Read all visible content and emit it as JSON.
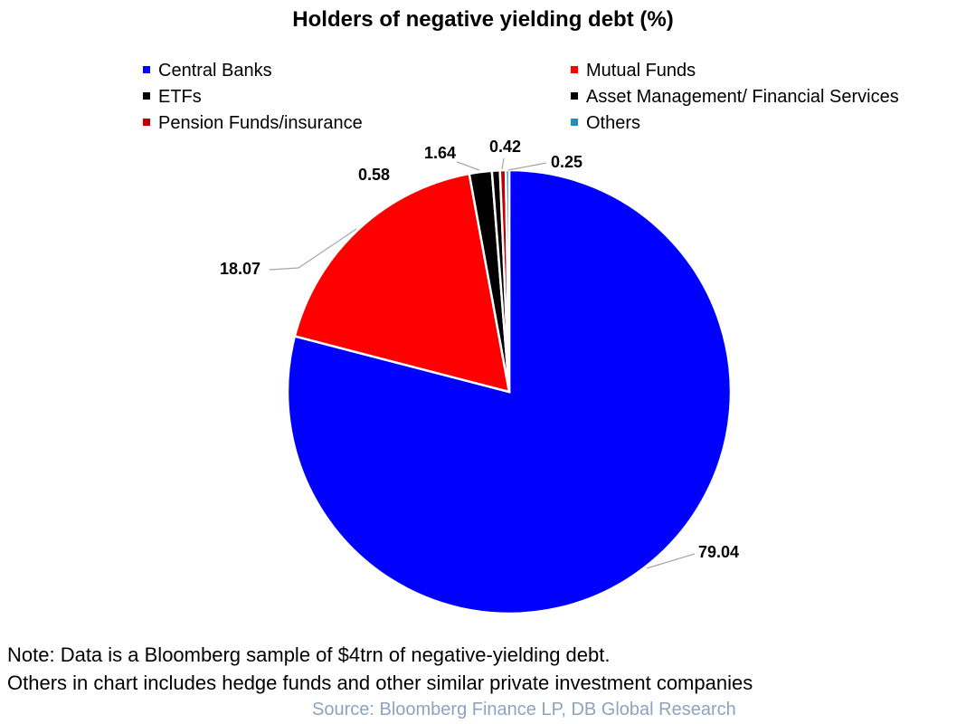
{
  "chart_data": {
    "type": "pie",
    "title": "Holders of negative yielding debt (%)",
    "slices": [
      {
        "label": "Central Banks",
        "value": 79.04,
        "label_text": "79.04",
        "color": "#0000ff"
      },
      {
        "label": "Mutual Funds",
        "value": 18.07,
        "label_text": "18.07",
        "color": "#ff0000"
      },
      {
        "label": "ETFs",
        "value": 1.64,
        "label_text": "1.64",
        "color": "#000000"
      },
      {
        "label": "Asset Management/ Financial Services",
        "value": 0.58,
        "label_text": "0.58",
        "color": "#000000"
      },
      {
        "label": "Pension Funds/insurance",
        "value": 0.42,
        "label_text": "0.42",
        "color": "#c00000"
      },
      {
        "label": "Others",
        "value": 0.25,
        "label_text": "0.25",
        "color": "#1f8fbf"
      }
    ],
    "legend_position": "top"
  },
  "note": {
    "line1": "Note: Data is a Bloomberg sample of $4trn of negative-yielding debt.",
    "line2": "Others in chart includes hedge funds and other similar private investment companies"
  },
  "source": "Source: Bloomberg Finance LP, DB Global Research"
}
